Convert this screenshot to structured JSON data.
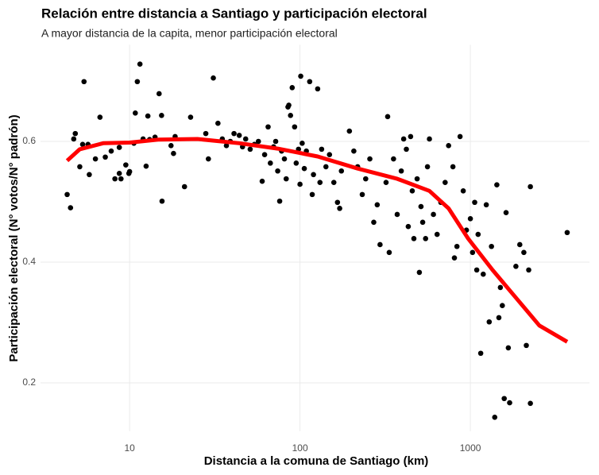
{
  "chart_data": {
    "type": "scatter",
    "title": "Relación entre distancia a Santiago y participación electoral",
    "subtitle": "A mayor distancia de la capita, menor participación electoral",
    "x_label": "Distancia a la comuna de Santiago (km)",
    "y_label": "Participación electoral (N° votos/N° padrón)",
    "x_scale": "log",
    "grid": true,
    "xlim": [
      3,
      5000
    ],
    "ylim": [
      0.12,
      0.76
    ],
    "xticks": [
      10,
      100,
      1000
    ],
    "yticks": [
      0.2,
      0.4,
      0.6
    ],
    "color": "#000000",
    "x": [
      4.3,
      4.5,
      4.7,
      4.8,
      5.1,
      5.3,
      5.4,
      5.7,
      5.8,
      6.3,
      6.7,
      7.2,
      7.8,
      8.2,
      8.7,
      8.7,
      8.9,
      9.5,
      9.9,
      10,
      10.6,
      10.8,
      11.1,
      11.5,
      12,
      12.5,
      12.8,
      13.1,
      14.1,
      14.9,
      15.4,
      15.5,
      17.5,
      18.1,
      18.5,
      21,
      22.8,
      28,
      29,
      31,
      33,
      35,
      37,
      39,
      41,
      44,
      46,
      48,
      51,
      54,
      57,
      60,
      62,
      65,
      67,
      70,
      72,
      74,
      76,
      78,
      81,
      83,
      85,
      86,
      88,
      90,
      93,
      95,
      98,
      100,
      101,
      103,
      106,
      109,
      114,
      118,
      120,
      127,
      131,
      134,
      142,
      149,
      158,
      166,
      171,
      175,
      195,
      207,
      218,
      232,
      243,
      257,
      271,
      284,
      295,
      320,
      327,
      334,
      354,
      372,
      393,
      406,
      421,
      432,
      446,
      456,
      466,
      487,
      502,
      513,
      525,
      546,
      560,
      575,
      607,
      638,
      671,
      711,
      745,
      790,
      806,
      834,
      870,
      908,
      948,
      1000,
      1030,
      1060,
      1090,
      1110,
      1150,
      1190,
      1240,
      1290,
      1330,
      1390,
      1430,
      1470,
      1500,
      1540,
      1580,
      1620,
      1670,
      1700,
      1850,
      1950,
      2060,
      2130,
      2200,
      2250,
      2250,
      3700
    ],
    "y": [
      0.512,
      0.49,
      0.604,
      0.613,
      0.558,
      0.595,
      0.699,
      0.595,
      0.545,
      0.571,
      0.64,
      0.574,
      0.584,
      0.538,
      0.547,
      0.59,
      0.538,
      0.561,
      0.547,
      0.55,
      0.597,
      0.647,
      0.699,
      0.728,
      0.604,
      0.559,
      0.642,
      0.603,
      0.607,
      0.679,
      0.643,
      0.501,
      0.593,
      0.58,
      0.608,
      0.525,
      0.64,
      0.613,
      0.571,
      0.705,
      0.63,
      0.604,
      0.593,
      0.6,
      0.613,
      0.61,
      0.591,
      0.604,
      0.587,
      0.595,
      0.6,
      0.534,
      0.578,
      0.624,
      0.564,
      0.591,
      0.6,
      0.551,
      0.501,
      0.584,
      0.571,
      0.538,
      0.657,
      0.66,
      0.643,
      0.689,
      0.624,
      0.564,
      0.587,
      0.529,
      0.708,
      0.597,
      0.555,
      0.584,
      0.699,
      0.512,
      0.545,
      0.687,
      0.532,
      0.587,
      0.558,
      0.578,
      0.532,
      0.499,
      0.489,
      0.551,
      0.617,
      0.584,
      0.558,
      0.512,
      0.538,
      0.571,
      0.466,
      0.495,
      0.429,
      0.532,
      0.641,
      0.416,
      0.571,
      0.479,
      0.551,
      0.604,
      0.587,
      0.459,
      0.608,
      0.518,
      0.439,
      0.538,
      0.383,
      0.492,
      0.466,
      0.439,
      0.558,
      0.604,
      0.479,
      0.446,
      0.499,
      0.532,
      0.593,
      0.558,
      0.407,
      0.426,
      0.608,
      0.518,
      0.453,
      0.472,
      0.416,
      0.499,
      0.387,
      0.446,
      0.249,
      0.38,
      0.495,
      0.301,
      0.426,
      0.143,
      0.528,
      0.308,
      0.358,
      0.328,
      0.174,
      0.482,
      0.258,
      0.167,
      0.393,
      0.429,
      0.416,
      0.262,
      0.387,
      0.166,
      0.525,
      0.449
    ],
    "trend": {
      "color": "#ff0000",
      "x": [
        4.3,
        5.1,
        7.0,
        10,
        14.9,
        25,
        44,
        74,
        127,
        218,
        372,
        575,
        745,
        970,
        1350,
        1850,
        2540,
        3700
      ],
      "y": [
        0.568,
        0.587,
        0.597,
        0.598,
        0.603,
        0.604,
        0.597,
        0.588,
        0.575,
        0.555,
        0.538,
        0.518,
        0.489,
        0.439,
        0.387,
        0.341,
        0.295,
        0.268
      ]
    }
  }
}
